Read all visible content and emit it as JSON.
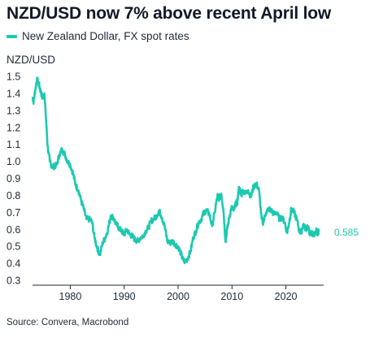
{
  "chart_data": {
    "type": "line",
    "title": "NZD/USD now 7% above recent April low",
    "ylabel": "NZD/USD",
    "xlabel": "",
    "source": "Source: Convera, Macrobond",
    "series": [
      {
        "name": "New Zealand Dollar, FX spot rates",
        "color": "#1cc9b0",
        "x": [
          1973.0,
          1973.2,
          1973.5,
          1973.8,
          1974.0,
          1974.3,
          1974.6,
          1974.9,
          1975.2,
          1975.5,
          1975.8,
          1976.2,
          1976.6,
          1977.0,
          1977.5,
          1978.0,
          1978.5,
          1979.0,
          1979.5,
          1980.0,
          1980.5,
          1981.0,
          1981.5,
          1982.0,
          1982.5,
          1983.0,
          1983.5,
          1984.0,
          1984.5,
          1985.0,
          1985.5,
          1986.0,
          1986.5,
          1987.0,
          1987.5,
          1988.0,
          1988.5,
          1989.0,
          1989.5,
          1990.0,
          1990.5,
          1991.0,
          1991.5,
          1992.0,
          1992.5,
          1993.0,
          1993.5,
          1994.0,
          1994.5,
          1995.0,
          1995.5,
          1996.0,
          1996.5,
          1997.0,
          1997.5,
          1998.0,
          1998.5,
          1999.0,
          1999.5,
          2000.0,
          2000.5,
          2000.9,
          2001.3,
          2001.8,
          2002.3,
          2002.8,
          2003.3,
          2003.8,
          2004.3,
          2004.8,
          2005.3,
          2005.8,
          2006.3,
          2006.8,
          2007.3,
          2007.6,
          2008.0,
          2008.4,
          2008.8,
          2009.1,
          2009.5,
          2009.9,
          2010.3,
          2010.7,
          2011.0,
          2011.3,
          2011.7,
          2012.0,
          2012.5,
          2013.0,
          2013.5,
          2014.0,
          2014.5,
          2015.0,
          2015.5,
          2015.8,
          2016.3,
          2016.8,
          2017.3,
          2017.8,
          2018.3,
          2018.8,
          2019.3,
          2019.8,
          2020.2,
          2020.6,
          2021.0,
          2021.5,
          2022.0,
          2022.5,
          2022.8,
          2023.2,
          2023.7,
          2024.0,
          2024.4,
          2024.8,
          2025.0,
          2025.3,
          2025.6,
          2025.9,
          2026.1
        ],
        "values": [
          1.38,
          1.35,
          1.42,
          1.48,
          1.47,
          1.44,
          1.4,
          1.37,
          1.4,
          1.25,
          1.09,
          1.0,
          0.97,
          0.97,
          0.98,
          1.04,
          1.07,
          1.04,
          1.0,
          0.98,
          0.93,
          0.86,
          0.83,
          0.77,
          0.72,
          0.66,
          0.66,
          0.65,
          0.55,
          0.49,
          0.45,
          0.52,
          0.55,
          0.6,
          0.68,
          0.67,
          0.63,
          0.61,
          0.59,
          0.57,
          0.6,
          0.57,
          0.56,
          0.54,
          0.53,
          0.55,
          0.56,
          0.59,
          0.61,
          0.65,
          0.66,
          0.68,
          0.71,
          0.67,
          0.62,
          0.53,
          0.52,
          0.53,
          0.51,
          0.5,
          0.46,
          0.42,
          0.41,
          0.43,
          0.47,
          0.55,
          0.59,
          0.64,
          0.66,
          0.7,
          0.71,
          0.69,
          0.62,
          0.7,
          0.8,
          0.78,
          0.81,
          0.72,
          0.53,
          0.6,
          0.67,
          0.73,
          0.71,
          0.75,
          0.76,
          0.85,
          0.8,
          0.83,
          0.81,
          0.83,
          0.79,
          0.85,
          0.87,
          0.83,
          0.66,
          0.64,
          0.7,
          0.72,
          0.71,
          0.69,
          0.7,
          0.66,
          0.67,
          0.64,
          0.58,
          0.64,
          0.72,
          0.7,
          0.66,
          0.59,
          0.58,
          0.63,
          0.6,
          0.62,
          0.58,
          0.57,
          0.58,
          0.56,
          0.59,
          0.58,
          0.585
        ]
      }
    ],
    "end_label": "0.585",
    "xlim": [
      1973,
      2027
    ],
    "ylim": [
      0.3,
      1.5
    ],
    "yticks": [
      0.3,
      0.4,
      0.5,
      0.6,
      0.7,
      0.8,
      0.9,
      1.0,
      1.1,
      1.2,
      1.3,
      1.4,
      1.5
    ],
    "ytick_labels": [
      "0.3",
      "0.4",
      "0.5",
      "0.6",
      "0.7",
      "0.8",
      "0.9",
      "1.0",
      "1.1",
      "1.2",
      "1.3",
      "1.4",
      "1.5"
    ],
    "xticks": [
      1980,
      1990,
      2000,
      2010,
      2020
    ],
    "xtick_labels": [
      "1980",
      "1990",
      "2000",
      "2010",
      "2020"
    ],
    "grid": false,
    "legend_position": "top-left"
  }
}
